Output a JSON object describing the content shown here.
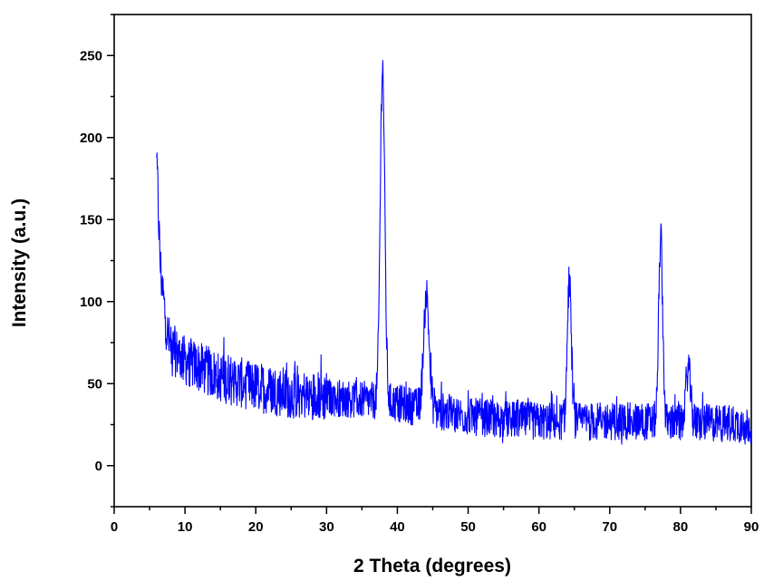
{
  "chart_data": {
    "type": "line",
    "xlabel": "2 Theta (degrees)",
    "ylabel": "Intensity (a.u.)",
    "xlim": [
      0,
      90
    ],
    "ylim": [
      -25,
      275
    ],
    "x_ticks": [
      0,
      10,
      20,
      30,
      40,
      50,
      60,
      70,
      80,
      90
    ],
    "y_ticks": [
      0,
      50,
      100,
      150,
      200,
      250
    ],
    "grid": false,
    "legend": "none",
    "series": [
      {
        "color": "#0000ff",
        "x_start": 6,
        "x_end": 90,
        "baseline_points": [
          [
            6,
            150
          ],
          [
            6.5,
            120
          ],
          [
            7,
            100
          ],
          [
            7.5,
            80
          ],
          [
            8,
            72
          ],
          [
            9,
            68
          ],
          [
            10,
            64
          ],
          [
            12,
            60
          ],
          [
            15,
            54
          ],
          [
            20,
            48
          ],
          [
            25,
            44
          ],
          [
            30,
            42
          ],
          [
            35,
            40
          ],
          [
            40,
            38
          ],
          [
            45,
            34
          ],
          [
            50,
            30
          ],
          [
            55,
            28
          ],
          [
            60,
            27
          ],
          [
            65,
            27
          ],
          [
            70,
            27
          ],
          [
            75,
            27
          ],
          [
            80,
            26
          ],
          [
            85,
            26
          ],
          [
            90,
            25
          ]
        ],
        "peaks": [
          {
            "x": 6.0,
            "y": 183
          },
          {
            "x": 37.9,
            "y": 250
          },
          {
            "x": 44.1,
            "y": 112
          },
          {
            "x": 64.3,
            "y": 117
          },
          {
            "x": 77.2,
            "y": 140
          },
          {
            "x": 81.1,
            "y": 61
          }
        ],
        "noise_amplitude": 22
      }
    ]
  }
}
